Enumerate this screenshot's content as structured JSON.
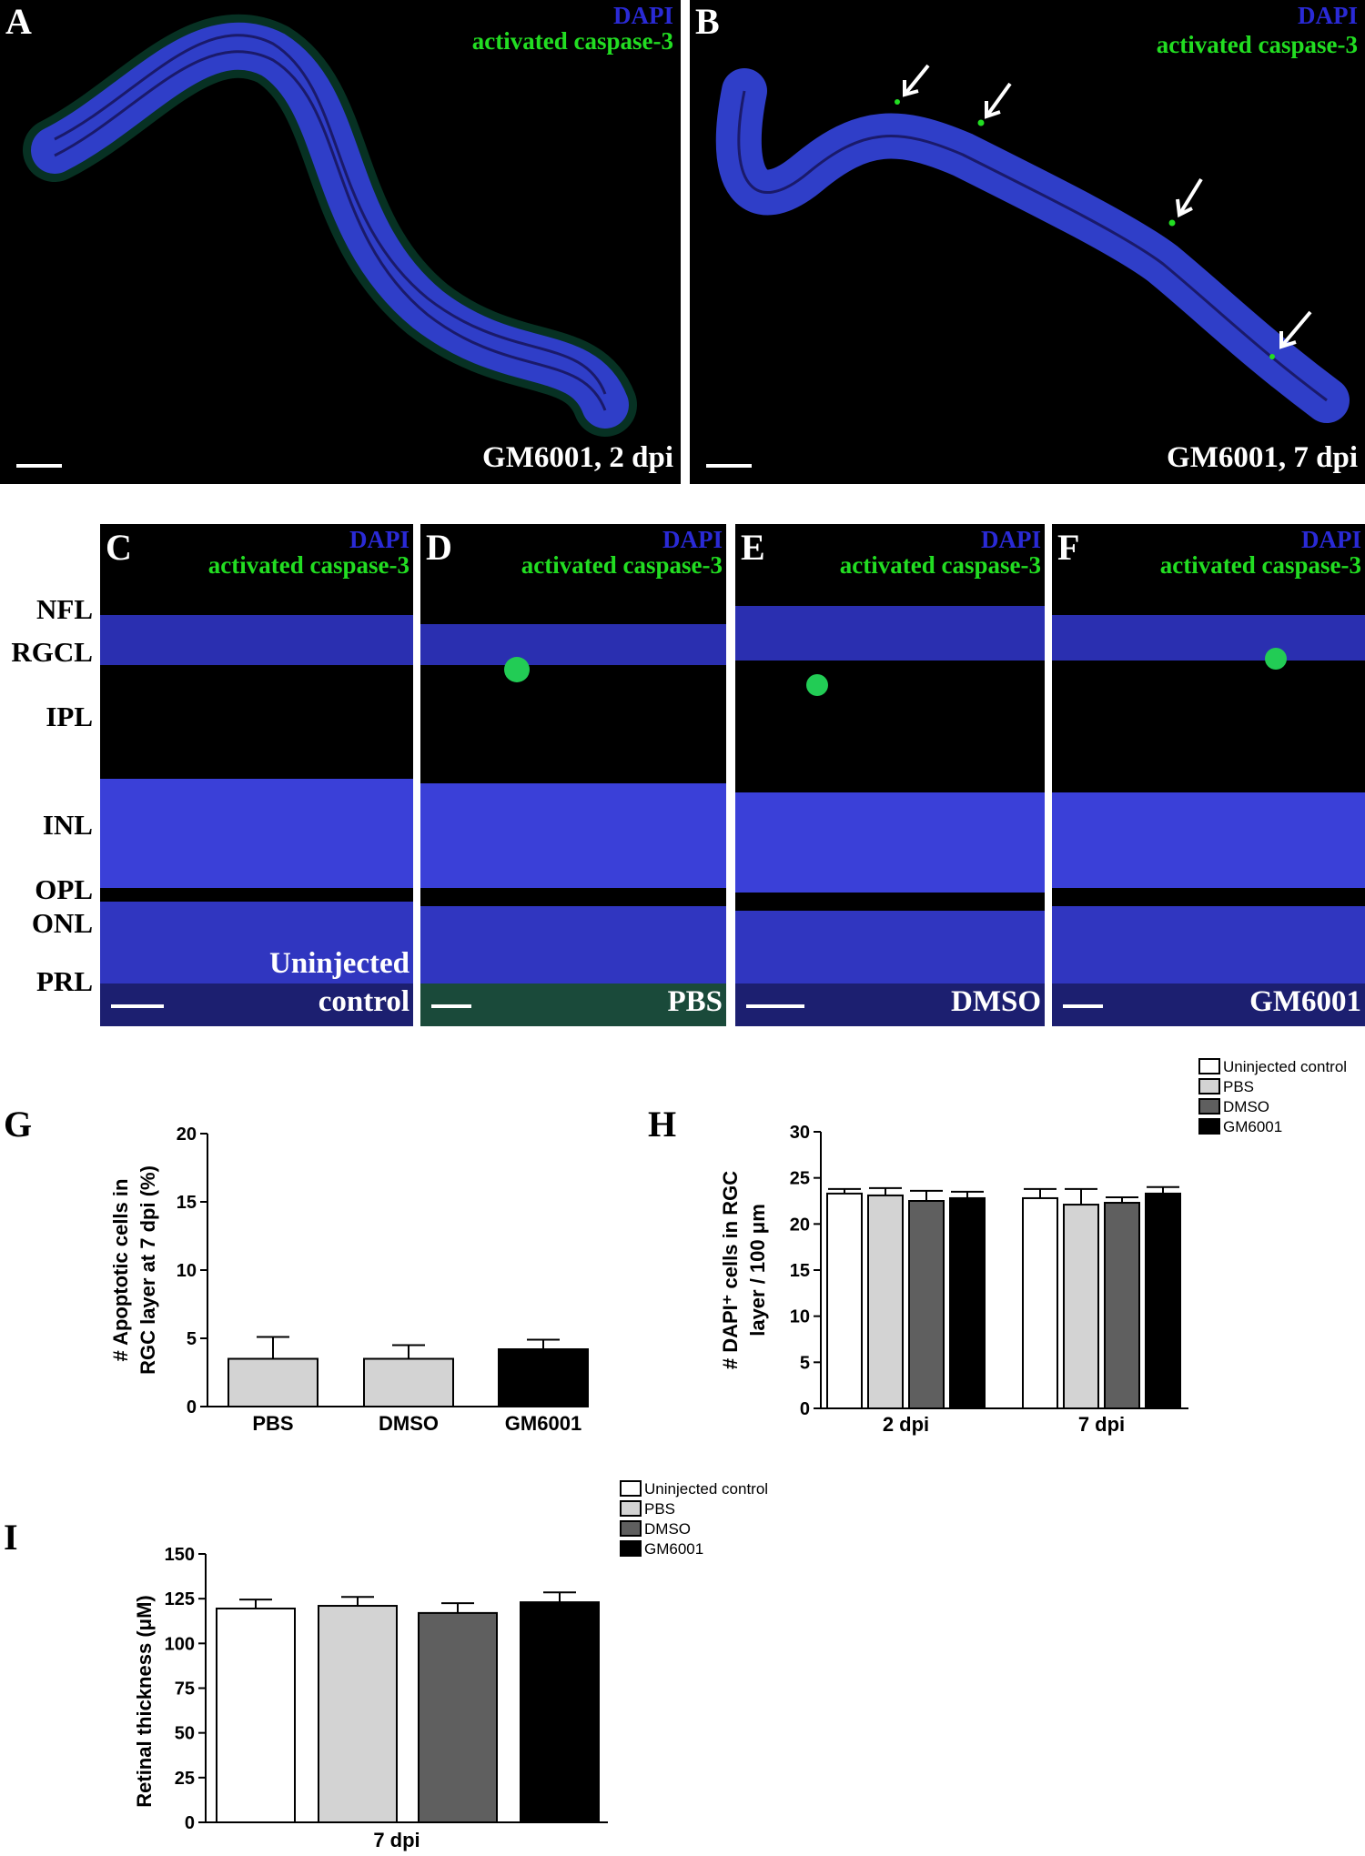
{
  "colors": {
    "dapi": "#2a2ad6",
    "caspase": "#22dd22",
    "uninjected": "#ffffff",
    "pbs": "#d3d3d3",
    "dmso": "#5f5f5f",
    "gm6001": "#000000"
  },
  "micrographs": [
    {
      "letter": "A",
      "dapi": "DAPI",
      "caspase": "activated caspase-3",
      "condition": "GM6001, 2 dpi"
    },
    {
      "letter": "B",
      "dapi": "DAPI",
      "caspase": "activated caspase-3",
      "condition": "GM6001, 7 dpi"
    },
    {
      "letter": "C",
      "dapi": "DAPI",
      "caspase": "activated caspase-3",
      "condition_line1": "Uninjected",
      "condition_line2": "control"
    },
    {
      "letter": "D",
      "dapi": "DAPI",
      "caspase": "activated caspase-3",
      "condition": "PBS"
    },
    {
      "letter": "E",
      "dapi": "DAPI",
      "caspase": "activated caspase-3",
      "condition": "DMSO"
    },
    {
      "letter": "F",
      "dapi": "DAPI",
      "caspase": "activated caspase-3",
      "condition": "GM6001"
    }
  ],
  "layers": [
    "NFL",
    "RGCL",
    "IPL",
    "INL",
    "OPL",
    "ONL",
    "PRL"
  ],
  "chart_data": [
    {
      "letter": "G",
      "type": "bar",
      "categories": [
        "PBS",
        "DMSO",
        "GM6001"
      ],
      "values": [
        3.5,
        3.5,
        4.2
      ],
      "errors": [
        1.6,
        1.0,
        0.7
      ],
      "fills": [
        "#d3d3d3",
        "#d3d3d3",
        "#000000"
      ],
      "ylabel_line1": "# Apoptotic cells in",
      "ylabel_line2": "RGC layer at 7 dpi (%)",
      "ylim": [
        0,
        20
      ],
      "yticks": [
        0,
        5,
        10,
        15,
        20
      ]
    },
    {
      "letter": "H",
      "type": "bar",
      "categories": [
        "2 dpi",
        "7 dpi"
      ],
      "series": [
        {
          "name": "Uninjected control",
          "values": [
            23.3,
            22.8
          ],
          "errors": [
            0.5,
            1.0
          ]
        },
        {
          "name": "PBS",
          "values": [
            23.1,
            22.1
          ],
          "errors": [
            0.8,
            1.7
          ]
        },
        {
          "name": "DMSO",
          "values": [
            22.5,
            22.3
          ],
          "errors": [
            1.1,
            0.6
          ]
        },
        {
          "name": "GM6001",
          "values": [
            22.8,
            23.3
          ],
          "errors": [
            0.7,
            0.7
          ]
        }
      ],
      "ylabel_line1": "# DAPI⁺ cells in RGC",
      "ylabel_line2": "layer / 100 μm",
      "ylim": [
        0,
        30
      ],
      "yticks": [
        0,
        5,
        10,
        15,
        20,
        25,
        30
      ],
      "legend": "top-right"
    },
    {
      "letter": "I",
      "type": "bar",
      "categories": [
        "7 dpi"
      ],
      "series": [
        {
          "name": "Uninjected control",
          "values": [
            119.5
          ],
          "errors": [
            5
          ]
        },
        {
          "name": "PBS",
          "values": [
            121
          ],
          "errors": [
            5
          ]
        },
        {
          "name": "DMSO",
          "values": [
            117
          ],
          "errors": [
            5.5
          ]
        },
        {
          "name": "GM6001",
          "values": [
            123
          ],
          "errors": [
            5.5
          ]
        }
      ],
      "ylabel": "Retinal thickness (μM)",
      "ylim": [
        0,
        150
      ],
      "yticks": [
        0,
        25,
        50,
        75,
        100,
        125,
        150
      ],
      "legend": "top-right"
    }
  ]
}
